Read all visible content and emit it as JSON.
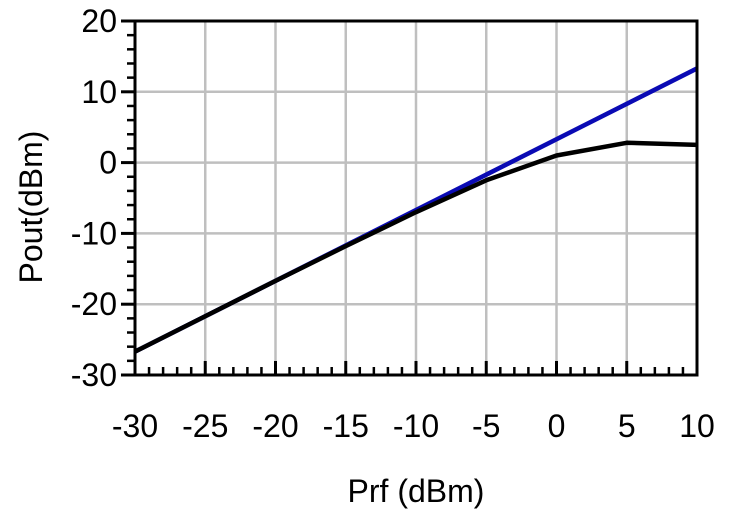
{
  "chart_data": {
    "type": "line",
    "title": "",
    "xlabel": "Prf (dBm)",
    "ylabel": "Pout(dBm)",
    "xlim": [
      -30,
      10
    ],
    "ylim": [
      -30,
      20
    ],
    "x_ticks": [
      -30,
      -25,
      -20,
      -15,
      -10,
      -5,
      0,
      5,
      10
    ],
    "y_ticks": [
      20,
      10,
      0,
      -10,
      -20,
      -30
    ],
    "x_tick_labels": [
      "-30",
      "-25",
      "-20",
      "-15",
      "-10",
      "-5",
      "0",
      "5",
      "10"
    ],
    "y_tick_labels": [
      "20",
      "10",
      "0",
      "-10",
      "-20",
      "-30"
    ],
    "grid": true,
    "legend": "none",
    "series": [
      {
        "color": "#0a0ab4",
        "x": [
          -30,
          10
        ],
        "y": [
          -26.7,
          13.3
        ]
      },
      {
        "color": "#000000",
        "x": [
          -30,
          -25,
          -20,
          -15,
          -10,
          -5,
          0,
          5,
          10
        ],
        "y": [
          -26.7,
          -21.7,
          -16.7,
          -11.8,
          -7.0,
          -2.5,
          1.0,
          2.8,
          2.5
        ]
      }
    ]
  },
  "colors": {
    "grid": "#bfbfbf",
    "axis": "#000000",
    "background": "#ffffff"
  }
}
